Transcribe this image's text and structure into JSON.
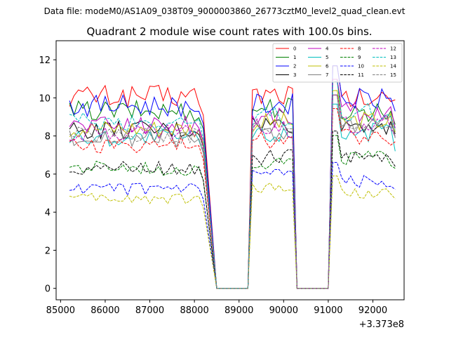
{
  "header": {
    "subtitle": "Data file: modeM0/AS1A09_038T09_9000003860_26773cztM0_level2_quad_clean.evt"
  },
  "chart_data": {
    "type": "line",
    "title": "Quadrant 2 module wise count rates with 100.0s bins.",
    "xlabel": "",
    "ylabel": "",
    "x_offset_label": "+3.373e8",
    "xlim": [
      84900,
      92700
    ],
    "ylim": [
      -0.6,
      13.0
    ],
    "xticks": [
      85000,
      86000,
      87000,
      88000,
      89000,
      90000,
      91000,
      92000
    ],
    "xtick_labels": [
      "85000",
      "86000",
      "87000",
      "88000",
      "89000",
      "90000",
      "91000",
      "92000"
    ],
    "yticks": [
      0,
      2,
      4,
      6,
      8,
      10,
      12
    ],
    "ytick_labels": [
      "0",
      "2",
      "4",
      "6",
      "8",
      "10",
      "12"
    ],
    "legend_position": "top-right",
    "segments": [
      {
        "start": 85200,
        "step": 100,
        "count": 31
      },
      {
        "start": 88500,
        "step": 100,
        "count": 8
      },
      {
        "start": 89300,
        "step": 100,
        "count": 10
      },
      {
        "start": 90300,
        "step": 100,
        "count": 8
      },
      {
        "start": 91100,
        "step": 100,
        "count": 15
      }
    ],
    "series": [
      {
        "name": "0",
        "color": "#ff0000",
        "dash": "solid",
        "levels": [
          10.1,
          10.2,
          9.9
        ],
        "end_value": 9.9
      },
      {
        "name": "1",
        "color": "#008000",
        "dash": "solid",
        "levels": [
          9.3,
          9.5,
          9.3
        ],
        "end_value": 8.6
      },
      {
        "name": "2",
        "color": "#0000ff",
        "dash": "solid",
        "levels": [
          9.6,
          9.7,
          9.9
        ],
        "end_value": 9.3
      },
      {
        "name": "3",
        "color": "#000000",
        "dash": "solid",
        "levels": [
          8.3,
          8.6,
          8.6
        ],
        "end_value": 8.1
      },
      {
        "name": "4",
        "color": "#bf00bf",
        "dash": "solid",
        "levels": [
          8.6,
          9.0,
          9.3
        ],
        "end_value": 8.4
      },
      {
        "name": "5",
        "color": "#00bfbf",
        "dash": "solid",
        "levels": [
          7.9,
          8.1,
          8.2
        ],
        "end_value": 7.2
      },
      {
        "name": "6",
        "color": "#bfbf00",
        "dash": "solid",
        "levels": [
          8.4,
          8.7,
          8.8
        ],
        "end_value": 8.2
      },
      {
        "name": "7",
        "color": "#808080",
        "dash": "solid",
        "levels": [
          7.9,
          8.2,
          8.6
        ],
        "end_value": 7.9
      },
      {
        "name": "8",
        "color": "#ff0000",
        "dash": "dashed",
        "levels": [
          7.5,
          7.8,
          8.0
        ],
        "end_value": 7.7
      },
      {
        "name": "9",
        "color": "#008000",
        "dash": "dashed",
        "levels": [
          6.3,
          6.6,
          6.8
        ],
        "end_value": 6.3
      },
      {
        "name": "10",
        "color": "#0000ff",
        "dash": "dashed",
        "levels": [
          5.2,
          5.9,
          5.6
        ],
        "end_value": 5.2
      },
      {
        "name": "11",
        "color": "#000000",
        "dash": "dashed",
        "levels": [
          6.3,
          6.9,
          7.0
        ],
        "end_value": 6.4
      },
      {
        "name": "12",
        "color": "#bf00bf",
        "dash": "dashed",
        "levels": [
          8.2,
          8.4,
          8.6
        ],
        "end_value": 8.0
      },
      {
        "name": "13",
        "color": "#00bfbf",
        "dash": "dashed",
        "levels": [
          8.7,
          9.0,
          9.2
        ],
        "end_value": 8.3
      },
      {
        "name": "14",
        "color": "#bfbf00",
        "dash": "dashed",
        "levels": [
          4.7,
          5.3,
          5.0
        ],
        "end_value": 4.7
      },
      {
        "name": "15",
        "color": "#808080",
        "dash": "dashed",
        "levels": [
          8.0,
          8.5,
          8.6
        ],
        "end_value": 7.9
      }
    ]
  }
}
